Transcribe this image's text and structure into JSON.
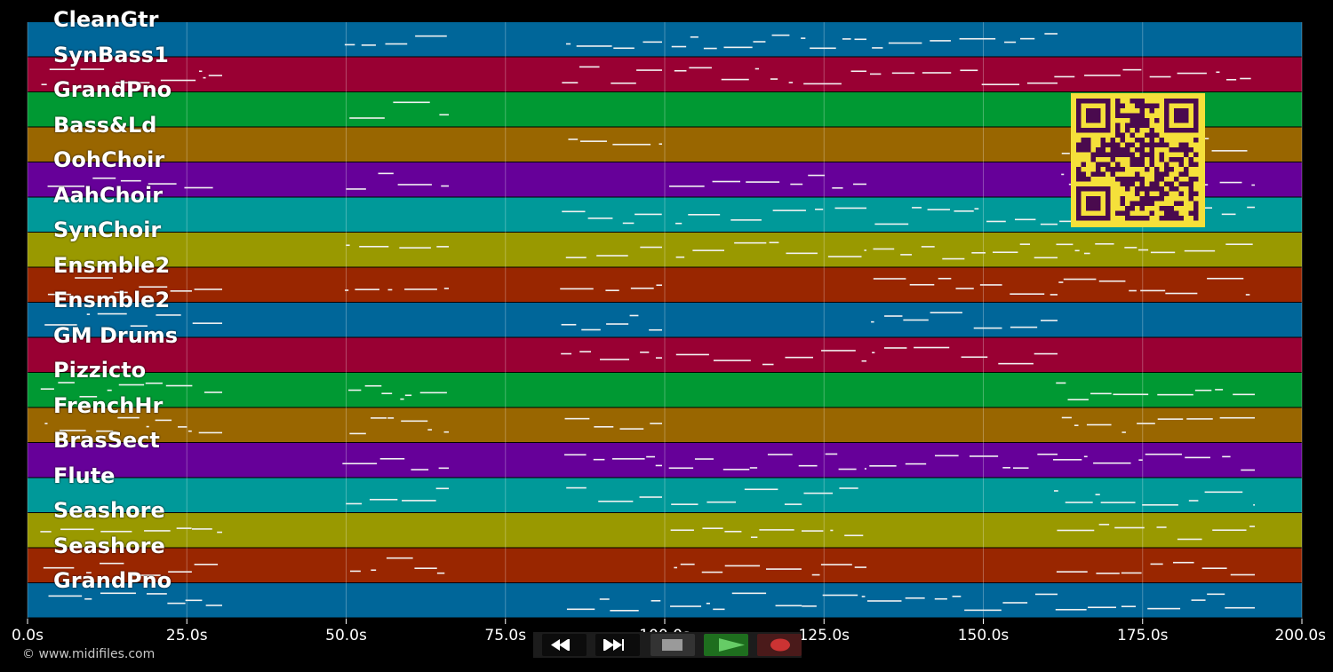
{
  "tracks": [
    {
      "name": "CleanGtr",
      "color": "#006699"
    },
    {
      "name": "SynBass1",
      "color": "#990033"
    },
    {
      "name": "GrandPno",
      "color": "#009933"
    },
    {
      "name": "Bass&Ld",
      "color": "#996600"
    },
    {
      "name": "OohChoir",
      "color": "#660099"
    },
    {
      "name": "AahChoir",
      "color": "#009999"
    },
    {
      "name": "SynChoir",
      "color": "#999900"
    },
    {
      "name": "Ensmble2",
      "color": "#992600"
    },
    {
      "name": "Ensmble2",
      "color": "#006699"
    },
    {
      "name": "GM Drums",
      "color": "#990033"
    },
    {
      "name": "Pizzicto",
      "color": "#009933"
    },
    {
      "name": "FrenchHr",
      "color": "#996600"
    },
    {
      "name": "BrasSect",
      "color": "#660099"
    },
    {
      "name": "Flute",
      "color": "#009999"
    },
    {
      "name": "Seashore",
      "color": "#999900"
    },
    {
      "name": "Seashore",
      "color": "#992600"
    },
    {
      "name": "GrandPno",
      "color": "#006699"
    }
  ],
  "timeline": {
    "range_seconds": [
      0,
      200
    ],
    "ticks": [
      {
        "t": 0,
        "label": "0.0s"
      },
      {
        "t": 25,
        "label": "25.0s"
      },
      {
        "t": 50,
        "label": "50.0s"
      },
      {
        "t": 75,
        "label": "75.0s"
      },
      {
        "t": 100,
        "label": "100.0s"
      },
      {
        "t": 125,
        "label": "125.0s"
      },
      {
        "t": 150,
        "label": "150.0s"
      },
      {
        "t": 175,
        "label": "175.0s"
      },
      {
        "t": 200,
        "label": "200.0s"
      }
    ]
  },
  "copyright": "© www.midifiles.com",
  "transport": {
    "rewind_icon": "rewind-icon",
    "fast_forward_icon": "fast-forward-icon",
    "stop_icon": "stop-icon",
    "play_icon": "play-icon",
    "record_icon": "record-icon"
  },
  "qr_code": "qr-code-icon"
}
